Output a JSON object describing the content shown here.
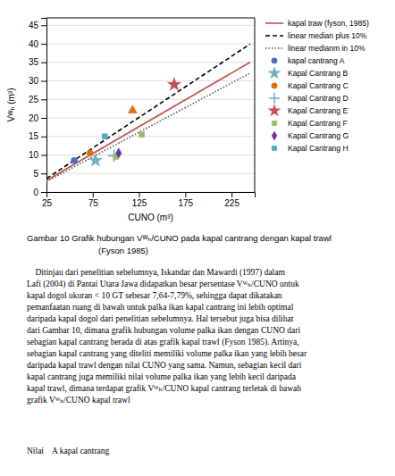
{
  "chart_data": {
    "type": "scatter",
    "xlabel": "CUNO (m³)",
    "ylabel": "Vᵂₕ (m³)",
    "xlim": [
      25,
      250
    ],
    "ylim": [
      0,
      47
    ],
    "xticks": [
      25,
      75,
      125,
      175,
      225
    ],
    "yticks": [
      0,
      5,
      10,
      15,
      20,
      25,
      30,
      35,
      40,
      45
    ],
    "grid": "y",
    "legend": "right",
    "series": [
      {
        "name": "kapal traw (fyson, 1985)",
        "type": "line",
        "color": "#c0504d",
        "line_style": "solid",
        "x": [
          25,
          245
        ],
        "values": [
          3.125,
          35.025
        ]
      },
      {
        "name": "linear median plus 10%",
        "type": "line",
        "color": "#000000",
        "line_style": "dashed",
        "x": [
          25,
          245
        ],
        "values": [
          3.625,
          39.925
        ]
      },
      {
        "name": "linear medianm in 10%",
        "type": "line",
        "color": "#595959",
        "line_style": "dotted",
        "x": [
          25,
          245
        ],
        "values": [
          2.825,
          32.085
        ]
      },
      {
        "name": "kapal cantrang A",
        "type": "scatter",
        "color": "#4472C4",
        "marker": "circle",
        "x": [
          55
        ],
        "values": [
          8.5
        ]
      },
      {
        "name": "Kapal Cantrang B",
        "type": "scatter",
        "color": "#70b0c8",
        "marker": "star",
        "x": [
          78
        ],
        "values": [
          8.5
        ]
      },
      {
        "name": "Kapal Cantrang C",
        "type": "scatter",
        "color": "#e36c09",
        "marker": "circle",
        "x": [
          72
        ],
        "values": [
          10.5
        ]
      },
      {
        "name": "Kapal Cantrang D",
        "type": "scatter",
        "color": "#70b0c8",
        "marker": "plus",
        "x": [
          98
        ],
        "values": [
          9.8
        ]
      },
      {
        "name": "Kapal Cantrang E",
        "type": "scatter",
        "color": "#c0504d",
        "marker": "star",
        "x": [
          163
        ],
        "values": [
          29.0
        ]
      },
      {
        "name": "Kapal Cantrang F",
        "type": "scatter",
        "color": "#9bbb59",
        "marker": "square",
        "x": [
          128,
          100
        ],
        "values": [
          15.5,
          9.5
        ]
      },
      {
        "name": "Kapal Cantrang G",
        "type": "scatter",
        "color": "#7030a0",
        "marker": "diamond",
        "x": [
          103
        ],
        "values": [
          10.5
        ]
      },
      {
        "name": "Kapal Cantrang H",
        "type": "scatter",
        "color": "#4bacc6",
        "marker": "square",
        "x": [
          88
        ],
        "values": [
          15.0
        ]
      },
      {
        "type": "scatter",
        "color": "#e36c09",
        "marker": "triangle",
        "x": [
          118
        ],
        "values": [
          22.0
        ]
      }
    ],
    "annotations": [
      "Gambar 10 Grafik hubungan Vᵂₕ/CUNO pada kapal cantrang dengan kapal trawl",
      "(Fyson 1985)",
      "    Ditinjau dari penelitian sebelumnya, Iskandar dan Mawardi (1997) dalam",
      "Lafi (2004) di Pantai Utara Jawa didapatkan besar persentase Vᵂₕ/CUNO untuk",
      "kapal dogol ukuran < 10 GT sebesar 7,64-7,79%, sehingga dapat dikatakan",
      "pemanfaatan ruang di bawah untuk palka ikan kapal cantrang ini lebih optimal",
      "daripada kapal dogol dari penelitian sebelumnya. Hal tersebut juga bisa dilihat",
      "dari Gambar 10, dimana grafik hubungan volume palka ikan dengan CUNO dari",
      "sebagian kapal cantrang berada di atas grafik kapal trawl (Fyson 1985). Artinya,",
      "sebagian kapal cantrang yang diteliti memiliki volume palka ikan yang lebih besar",
      "daripada kapal trawl dengan nilai CUNO yang sama. Namun, sebagian kecil dari",
      "kapal cantrang juga memiliki nilai volume palka ikan yang lebih kecil daripada",
      "kapal trawl, dimana terdapat grafik Vᵂₕ/CUNO kapal cantrang terletak di bawah",
      "grafik Vᵂₕ/CUNO kapal trawl",
      "Nilai    A kapal cantrang"
    ]
  }
}
